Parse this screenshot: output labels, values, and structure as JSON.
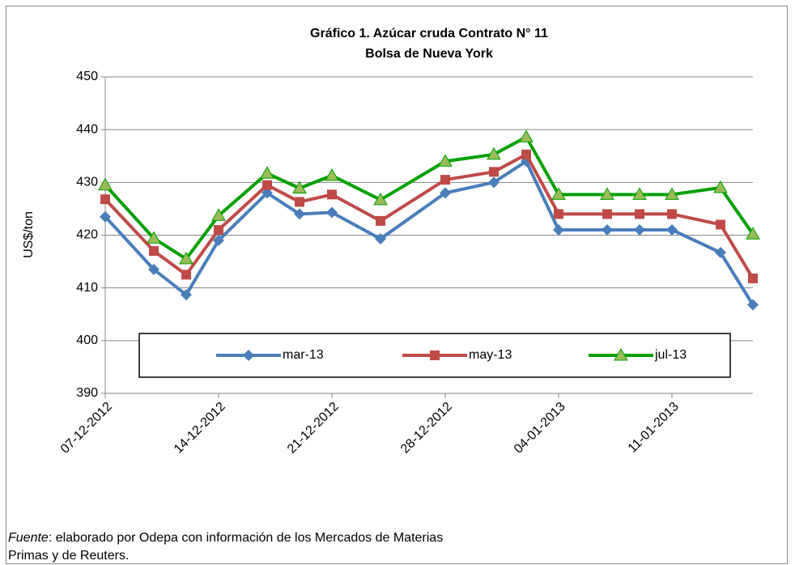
{
  "chart_data": {
    "type": "line",
    "title": "Gráfico 1. Azúcar cruda Contrato N° 11",
    "subtitle": "Bolsa de Nueva York",
    "y_label": "US$/ton",
    "x": [
      "07-12-2012",
      "10-12-2012",
      "12-12-2012",
      "14-12-2012",
      "17-12-2012",
      "19-12-2012",
      "21-12-2012",
      "24-12-2012",
      "28-12-2012",
      "31-12-2012",
      "02-01-2013",
      "04-01-2013",
      "07-01-2013",
      "09-01-2013",
      "11-01-2013",
      "14-01-2013",
      "16-01-2013"
    ],
    "series": [
      {
        "name": "mar-13",
        "color": "#4a7ebb",
        "marker": "diamond",
        "marker_color": "#4a7ebb",
        "values": [
          423.5,
          413.5,
          408.7,
          419,
          428,
          424,
          424.3,
          419.3,
          428,
          430,
          434,
          421,
          421,
          421,
          421,
          416.7,
          406.8
        ]
      },
      {
        "name": "may-13",
        "color": "#be4b48",
        "marker": "square",
        "marker_color": "#be4b48",
        "values": [
          426.8,
          417,
          412.5,
          421,
          429.5,
          426.3,
          427.7,
          422.7,
          430.5,
          432,
          435.3,
          424,
          424,
          424,
          424,
          422,
          411.8
        ]
      },
      {
        "name": "jul-13",
        "color": "#00a000",
        "marker": "triangle",
        "marker_color": "#9bbb59",
        "values": [
          429.5,
          419.4,
          415.5,
          423.7,
          431.7,
          428.9,
          431.3,
          426.7,
          434,
          435.3,
          438.6,
          427.7,
          427.7,
          427.7,
          427.7,
          429,
          420.2
        ]
      }
    ],
    "xlim": [
      "07-12-2012",
      "16-01-2013"
    ],
    "xticks": [
      "07-12-2012",
      "14-12-2012",
      "21-12-2012",
      "28-12-2012",
      "04-01-2013",
      "11-01-2013"
    ],
    "ylim": [
      390,
      450
    ],
    "yticks": [
      390,
      400,
      410,
      420,
      430,
      440,
      450
    ],
    "grid": true,
    "legend": "lower center"
  },
  "source": [
    "Fuente",
    ": elaborado por Odepa con información de los Mercados de Materias",
    "Primas y de Reuters."
  ]
}
